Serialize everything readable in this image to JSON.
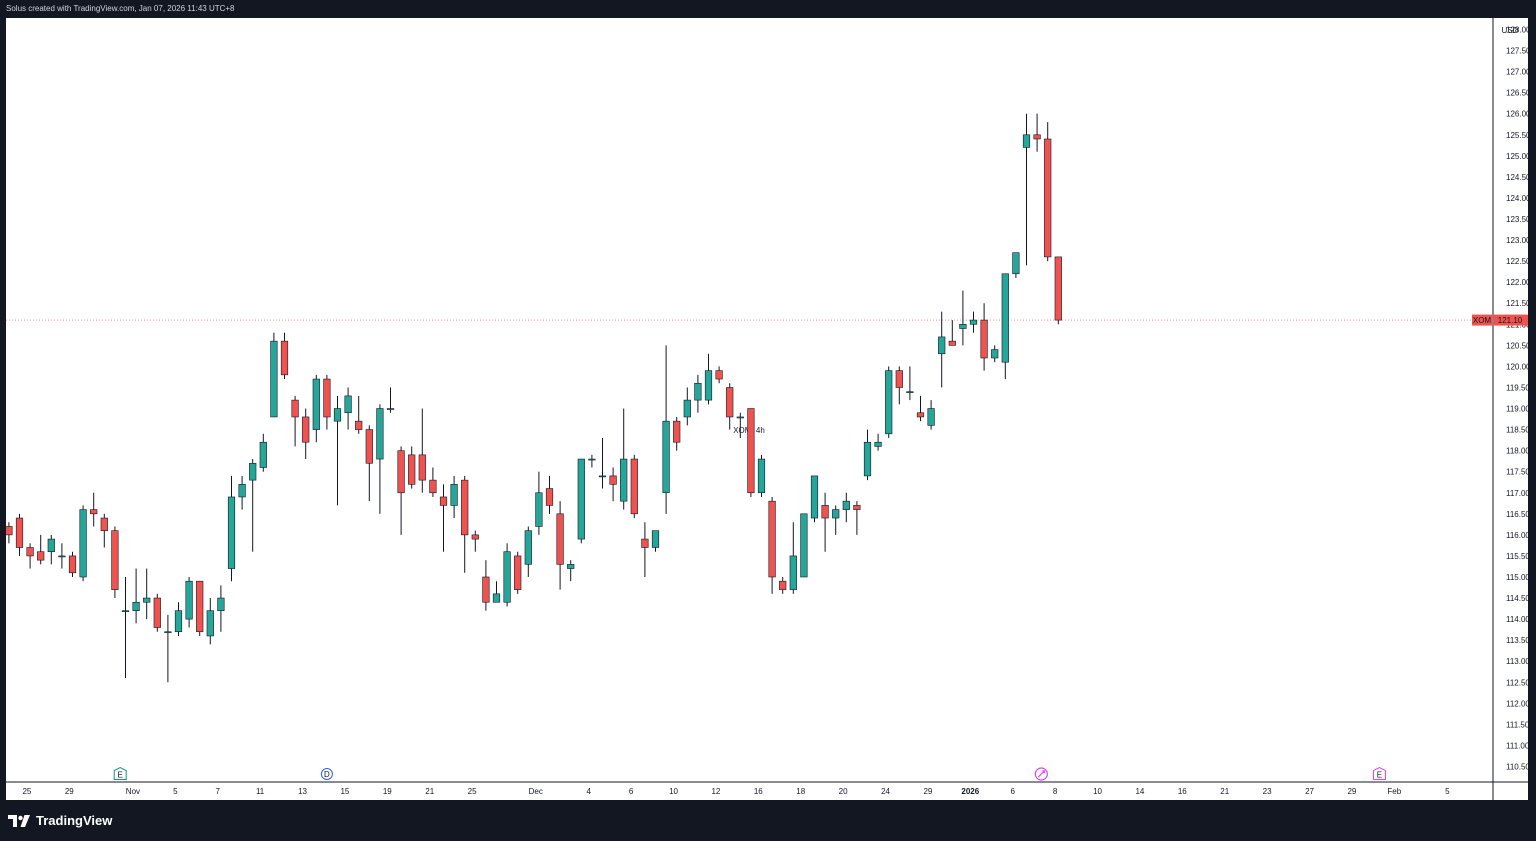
{
  "caption": "Solus created with TradingView.com, Jan 07, 2026 11:43 UTC+8",
  "brand": {
    "name": "TradingView",
    "icon": "tradingview-logo-icon"
  },
  "colors": {
    "up": "#26a69a",
    "down": "#ef5350",
    "price_line": "#ef5350",
    "dark_bg": "#131722"
  },
  "chart_data": {
    "type": "candlestick",
    "title": "XOM, 4h",
    "symbol": "XOM",
    "interval": "4h",
    "currency": "USD",
    "last_price": {
      "label": "XOM",
      "value": "121.10"
    },
    "ylim": [
      110.2,
      128.4
    ],
    "y_ticks": [
      "128.00",
      "127.50",
      "127.00",
      "126.50",
      "126.00",
      "125.50",
      "125.00",
      "124.50",
      "124.00",
      "123.50",
      "123.00",
      "122.50",
      "122.00",
      "121.50",
      "121.00",
      "120.50",
      "120.00",
      "119.50",
      "119.00",
      "118.50",
      "118.00",
      "117.50",
      "117.00",
      "116.50",
      "116.00",
      "115.50",
      "115.00",
      "114.50",
      "114.00",
      "113.50",
      "113.00",
      "112.50",
      "112.00",
      "111.50",
      "111.00",
      "110.50"
    ],
    "x_ticks": [
      {
        "label": "25",
        "bar": 1.7
      },
      {
        "label": "29",
        "bar": 5.7
      },
      {
        "label": "Nov",
        "bar": 11.7
      },
      {
        "label": "5",
        "bar": 15.7
      },
      {
        "label": "7",
        "bar": 19.7
      },
      {
        "label": "11",
        "bar": 23.7
      },
      {
        "label": "13",
        "bar": 27.7
      },
      {
        "label": "15",
        "bar": 31.7
      },
      {
        "label": "19",
        "bar": 35.7
      },
      {
        "label": "21",
        "bar": 39.7
      },
      {
        "label": "25",
        "bar": 43.7
      },
      {
        "label": "Dec",
        "bar": 49.7
      },
      {
        "label": "4",
        "bar": 54.7
      },
      {
        "label": "6",
        "bar": 58.7
      },
      {
        "label": "10",
        "bar": 62.7
      },
      {
        "label": "12",
        "bar": 66.7
      },
      {
        "label": "16",
        "bar": 70.7
      },
      {
        "label": "18",
        "bar": 74.7
      },
      {
        "label": "20",
        "bar": 78.7
      },
      {
        "label": "24",
        "bar": 82.7
      },
      {
        "label": "29",
        "bar": 86.7
      },
      {
        "label": "2026",
        "bar": 90.7,
        "bold": true
      },
      {
        "label": "6",
        "bar": 94.7
      },
      {
        "label": "8",
        "bar": 98.7
      },
      {
        "label": "10",
        "bar": 102.7
      },
      {
        "label": "14",
        "bar": 106.7
      },
      {
        "label": "16",
        "bar": 110.7
      },
      {
        "label": "21",
        "bar": 114.7
      },
      {
        "label": "23",
        "bar": 118.7
      },
      {
        "label": "27",
        "bar": 122.7
      },
      {
        "label": "29",
        "bar": 126.7
      },
      {
        "label": "Feb",
        "bar": 130.7
      },
      {
        "label": "5",
        "bar": 135.7
      }
    ],
    "event_markers": [
      {
        "label": "E",
        "type": "earnings",
        "bar": 10.5,
        "color": "#089981"
      },
      {
        "label": "D",
        "type": "dividend",
        "bar": 30.0,
        "color": "#2962ff"
      },
      {
        "label": "",
        "type": "split-icon",
        "bar": 97.4,
        "color": "#e040fb"
      },
      {
        "label": "E",
        "type": "earnings",
        "bar": 129.3,
        "color": "#e040fb"
      }
    ],
    "candles": [
      [
        116.2,
        116.3,
        115.8,
        116.0
      ],
      [
        116.4,
        116.5,
        115.5,
        115.7
      ],
      [
        115.7,
        115.8,
        115.2,
        115.5
      ],
      [
        115.6,
        116.0,
        115.3,
        115.4
      ],
      [
        115.6,
        116.0,
        115.3,
        115.9
      ],
      [
        115.5,
        115.8,
        115.2,
        115.5
      ],
      [
        115.5,
        115.6,
        115.0,
        115.1
      ],
      [
        115.0,
        116.7,
        114.9,
        116.6
      ],
      [
        116.6,
        117.0,
        116.2,
        116.5
      ],
      [
        116.4,
        116.5,
        115.7,
        116.1
      ],
      [
        116.1,
        116.2,
        114.5,
        114.7
      ],
      [
        114.2,
        115.0,
        112.6,
        114.2
      ],
      [
        114.2,
        115.2,
        113.9,
        114.4
      ],
      [
        114.4,
        115.2,
        114.0,
        114.5
      ],
      [
        114.5,
        114.6,
        113.7,
        113.8
      ],
      [
        113.7,
        114.1,
        112.5,
        113.7
      ],
      [
        113.7,
        114.4,
        113.6,
        114.2
      ],
      [
        114.0,
        115.0,
        113.8,
        114.9
      ],
      [
        114.9,
        114.9,
        113.6,
        113.7
      ],
      [
        113.6,
        114.5,
        113.4,
        114.2
      ],
      [
        114.2,
        114.8,
        113.7,
        114.5
      ],
      [
        115.2,
        117.4,
        114.9,
        116.9
      ],
      [
        116.9,
        117.4,
        116.6,
        117.2
      ],
      [
        117.3,
        117.8,
        115.6,
        117.7
      ],
      [
        117.6,
        118.4,
        117.5,
        118.2
      ],
      [
        118.8,
        120.8,
        118.8,
        120.6
      ],
      [
        120.6,
        120.8,
        119.7,
        119.8
      ],
      [
        119.2,
        119.3,
        118.1,
        118.8
      ],
      [
        118.8,
        119.0,
        117.8,
        118.2
      ],
      [
        118.5,
        119.8,
        118.2,
        119.7
      ],
      [
        119.7,
        119.8,
        118.5,
        118.8
      ],
      [
        118.7,
        119.3,
        116.7,
        119.0
      ],
      [
        118.9,
        119.5,
        118.5,
        119.3
      ],
      [
        118.7,
        119.3,
        118.4,
        118.5
      ],
      [
        118.5,
        118.6,
        116.8,
        117.7
      ],
      [
        117.8,
        119.1,
        116.5,
        119.0
      ],
      [
        119.0,
        119.5,
        118.9,
        119.0
      ],
      [
        118.0,
        118.1,
        116.0,
        117.0
      ],
      [
        117.9,
        118.1,
        117.1,
        117.2
      ],
      [
        117.9,
        119.0,
        117.0,
        117.3
      ],
      [
        117.3,
        117.6,
        116.9,
        117.0
      ],
      [
        116.9,
        117.2,
        115.6,
        116.7
      ],
      [
        116.7,
        117.4,
        116.4,
        117.2
      ],
      [
        117.3,
        117.4,
        115.1,
        116.0
      ],
      [
        116.0,
        116.1,
        115.6,
        115.9
      ],
      [
        115.0,
        115.4,
        114.2,
        114.4
      ],
      [
        114.4,
        114.9,
        114.4,
        114.6
      ],
      [
        114.4,
        115.8,
        114.3,
        115.6
      ],
      [
        115.5,
        115.6,
        114.6,
        114.7
      ],
      [
        115.3,
        116.2,
        115.0,
        116.1
      ],
      [
        116.2,
        117.5,
        116.0,
        117.0
      ],
      [
        117.1,
        117.4,
        116.5,
        116.7
      ],
      [
        116.5,
        116.8,
        114.7,
        115.3
      ],
      [
        115.2,
        115.4,
        114.9,
        115.3
      ],
      [
        115.9,
        117.8,
        115.8,
        117.8
      ],
      [
        117.8,
        117.9,
        117.6,
        117.8
      ],
      [
        117.4,
        118.3,
        117.1,
        117.4
      ],
      [
        117.4,
        117.6,
        116.8,
        117.2
      ],
      [
        116.8,
        119.0,
        116.6,
        117.8
      ],
      [
        117.8,
        117.9,
        116.4,
        116.5
      ],
      [
        115.9,
        116.3,
        115.0,
        115.7
      ],
      [
        115.7,
        116.1,
        115.6,
        116.1
      ],
      [
        117.0,
        120.5,
        116.5,
        118.7
      ],
      [
        118.7,
        118.8,
        118.0,
        118.2
      ],
      [
        118.8,
        119.5,
        118.6,
        119.2
      ],
      [
        119.2,
        119.8,
        118.9,
        119.6
      ],
      [
        119.2,
        120.3,
        119.1,
        119.9
      ],
      [
        119.9,
        120.0,
        119.6,
        119.7
      ],
      [
        119.5,
        119.6,
        118.5,
        118.8
      ],
      [
        118.8,
        118.9,
        118.3,
        118.8
      ],
      [
        119.0,
        119.0,
        116.9,
        117.0
      ],
      [
        117.0,
        117.9,
        116.9,
        117.8
      ],
      [
        116.8,
        116.9,
        114.6,
        115.0
      ],
      [
        114.9,
        115.0,
        114.6,
        114.7
      ],
      [
        114.7,
        116.3,
        114.6,
        115.5
      ],
      [
        115.0,
        116.5,
        115.0,
        116.5
      ],
      [
        116.4,
        117.4,
        116.3,
        117.4
      ],
      [
        116.7,
        117.0,
        115.6,
        116.4
      ],
      [
        116.4,
        116.7,
        116.0,
        116.6
      ],
      [
        116.6,
        117.0,
        116.3,
        116.8
      ],
      [
        116.7,
        116.8,
        116.0,
        116.6
      ],
      [
        117.4,
        118.5,
        117.3,
        118.2
      ],
      [
        118.1,
        118.4,
        118.0,
        118.2
      ],
      [
        118.4,
        120.0,
        118.3,
        119.9
      ],
      [
        119.9,
        120.0,
        119.1,
        119.5
      ],
      [
        119.4,
        120.0,
        119.2,
        119.4
      ],
      [
        118.9,
        119.3,
        118.7,
        118.8
      ],
      [
        118.6,
        119.2,
        118.5,
        119.0
      ],
      [
        120.3,
        121.3,
        119.5,
        120.7
      ],
      [
        120.6,
        121.1,
        120.5,
        120.5
      ],
      [
        120.9,
        121.8,
        120.5,
        121.0
      ],
      [
        121.0,
        121.3,
        120.8,
        121.1
      ],
      [
        121.1,
        121.5,
        119.9,
        120.2
      ],
      [
        120.2,
        120.5,
        120.1,
        120.4
      ],
      [
        120.1,
        122.2,
        119.7,
        122.2
      ],
      [
        122.2,
        122.7,
        122.1,
        122.7
      ],
      [
        125.2,
        126.0,
        122.4,
        125.5
      ],
      [
        125.5,
        126.0,
        125.1,
        125.4
      ],
      [
        125.4,
        125.8,
        122.5,
        122.6
      ],
      [
        122.6,
        122.6,
        121.0,
        121.1
      ]
    ]
  }
}
